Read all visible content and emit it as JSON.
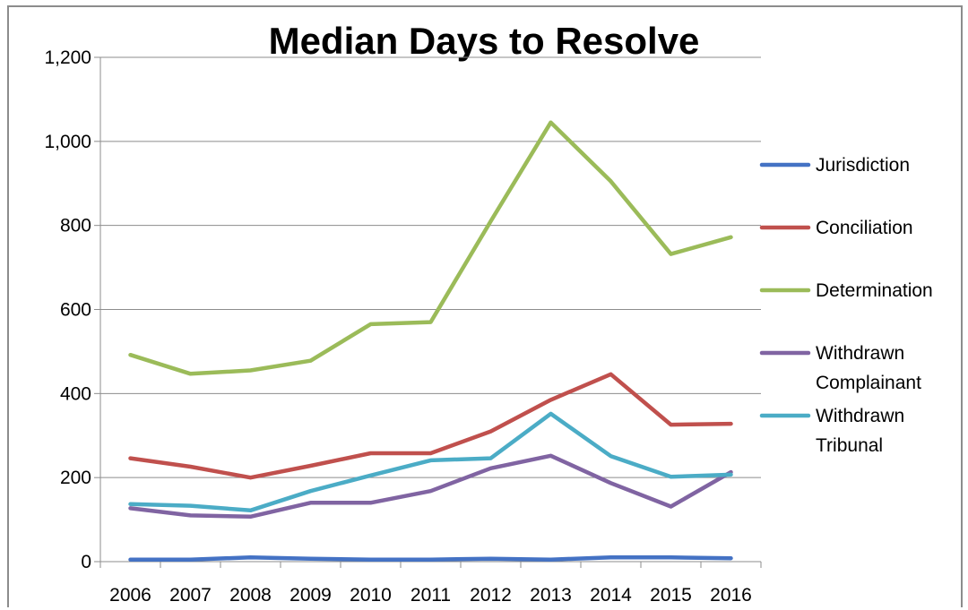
{
  "chart_data": {
    "type": "line",
    "title": "Median Days to Resolve",
    "xlabel": "",
    "ylabel": "",
    "categories": [
      "2006",
      "2007",
      "2008",
      "2009",
      "2010",
      "2011",
      "2012",
      "2013",
      "2014",
      "2015",
      "2016"
    ],
    "ylim": [
      0,
      1200
    ],
    "yticks": [
      0,
      200,
      400,
      600,
      800,
      1000,
      1200
    ],
    "ytick_labels": [
      "0",
      "200",
      "400",
      "600",
      "800",
      "1,000",
      "1,200"
    ],
    "grid": true,
    "legend": "right",
    "series": [
      {
        "name": "Jurisdiction",
        "color": "#4472c4",
        "values": [
          5,
          5,
          10,
          7,
          5,
          5,
          7,
          5,
          10,
          10,
          8
        ]
      },
      {
        "name": "Conciliation",
        "color": "#c0504d",
        "values": [
          246,
          226,
          200,
          228,
          258,
          258,
          310,
          385,
          446,
          326,
          328
        ]
      },
      {
        "name": "Determination",
        "color": "#9bbb59",
        "values": [
          492,
          447,
          455,
          478,
          565,
          570,
          810,
          1045,
          905,
          732,
          772
        ]
      },
      {
        "name": "Withdrawn Complainant",
        "color": "#8064a2",
        "values": [
          127,
          110,
          107,
          140,
          140,
          168,
          222,
          252,
          187,
          131,
          213
        ]
      },
      {
        "name": "Withdrawn Tribunal",
        "color": "#4bacc6",
        "values": [
          137,
          133,
          122,
          168,
          205,
          241,
          246,
          352,
          251,
          202,
          207
        ]
      }
    ]
  }
}
